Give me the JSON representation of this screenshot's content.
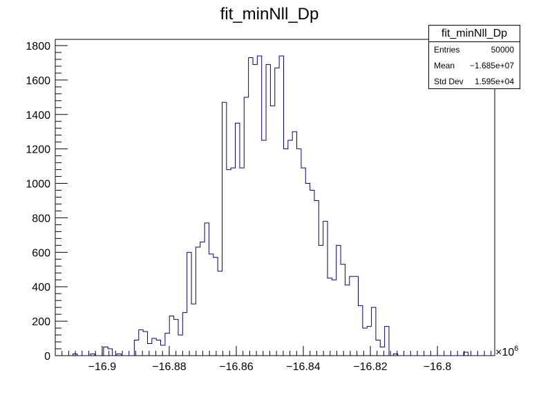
{
  "chart_data": {
    "type": "bar",
    "title": "fit_minNll_Dp",
    "xlabel": "",
    "ylabel": "",
    "x_multiplier_label": "×10",
    "x_multiplier_exp": "6",
    "xlim": [
      -16.914,
      -16.7829
    ],
    "ylim": [
      0,
      1836
    ],
    "x_ticks": [
      -16.9,
      -16.88,
      -16.86,
      -16.84,
      -16.82,
      -16.8
    ],
    "x_tick_labels": [
      "−16.9",
      "−16.88",
      "−16.86",
      "−16.84",
      "−16.82",
      "−16.8"
    ],
    "y_ticks": [
      0,
      200,
      400,
      600,
      800,
      1000,
      1200,
      1400,
      1600,
      1800
    ],
    "y_tick_labels": [
      "0",
      "200",
      "400",
      "600",
      "800",
      "1000",
      "1200",
      "1400",
      "1600",
      "1800"
    ],
    "bin_width": 0.00131,
    "bin_values": [
      0,
      0,
      0,
      0,
      10,
      0,
      0,
      0,
      10,
      0,
      0,
      50,
      40,
      0,
      10,
      0,
      0,
      0,
      90,
      150,
      140,
      70,
      100,
      90,
      60,
      130,
      230,
      210,
      120,
      250,
      600,
      300,
      630,
      660,
      770,
      590,
      570,
      490,
      1470,
      1080,
      1090,
      1350,
      1090,
      1500,
      1730,
      1690,
      1740,
      1250,
      1690,
      1450,
      1670,
      1740,
      1200,
      1250,
      1300,
      1200,
      1090,
      1000,
      960,
      900,
      640,
      780,
      450,
      440,
      640,
      530,
      410,
      460,
      460,
      290,
      160,
      170,
      280,
      90,
      50,
      170,
      0,
      10,
      0,
      0,
      0,
      0,
      0,
      0,
      0,
      0,
      0,
      0,
      0,
      0,
      0,
      0,
      0,
      20,
      0,
      0,
      0,
      0,
      0,
      0
    ],
    "line_color": "#000080",
    "stats": {
      "title": "fit_minNll_Dp",
      "rows": [
        {
          "label": "Entries",
          "value": "50000"
        },
        {
          "label": "Mean",
          "value": "−1.685e+07"
        },
        {
          "label": "Std Dev",
          "value": "1.595e+04"
        }
      ]
    }
  }
}
